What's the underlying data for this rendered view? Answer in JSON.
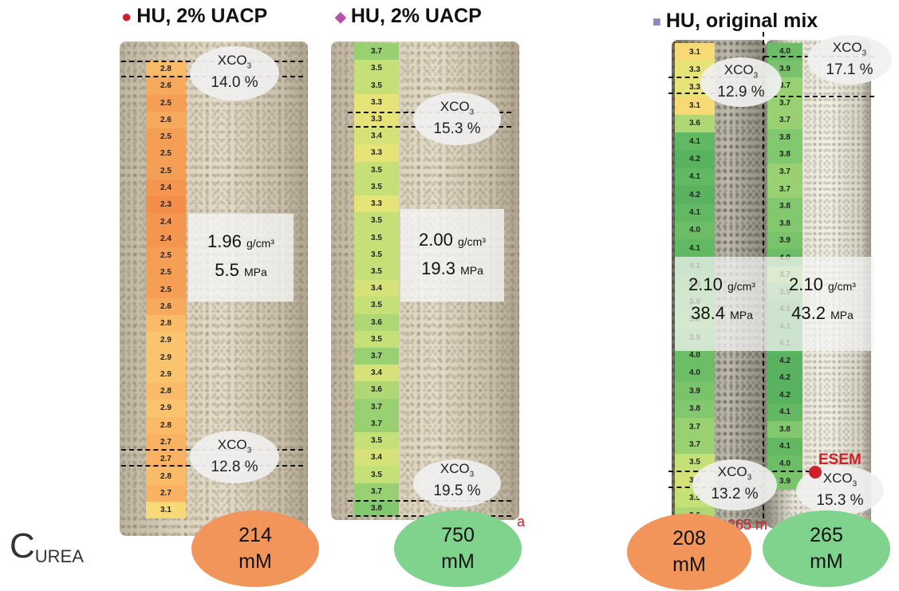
{
  "titles": {
    "left": {
      "marker": "●",
      "text": "HU, 2% UACP",
      "marker_color": "#d0202a"
    },
    "middle": {
      "marker": "◆",
      "text": "HU, 2% UACP",
      "marker_color": "#b455a8"
    },
    "right": {
      "marker": "■",
      "text": "HU, original mix",
      "marker_color": "#8f87c0"
    }
  },
  "samples": {
    "s1": {
      "strip": [
        "2.8",
        "2.6",
        "2.5",
        "2.6",
        "2.5",
        "2.5",
        "2.5",
        "2.4",
        "2.3",
        "2.4",
        "2.4",
        "2.5",
        "2.5",
        "2.5",
        "2.6",
        "2.8",
        "2.9",
        "2.9",
        "2.9",
        "2.8",
        "2.9",
        "2.8",
        "2.7",
        "2.7",
        "2.8",
        "2.7",
        "3.1"
      ],
      "top_xco3": {
        "label": "XCO3",
        "value": "14.0 %"
      },
      "bottom_xco3": {
        "label": "XCO3",
        "value": "12.8 %"
      },
      "density_value": "1.96",
      "density_unit": "g/cm³",
      "strength_value": "5.5",
      "strength_unit": "MPa",
      "urea": {
        "value": "214",
        "unit": "mM",
        "color": "#f2955a"
      }
    },
    "s2": {
      "strip": [
        "3.7",
        "3.5",
        "3.5",
        "3.3",
        "3.3",
        "3.4",
        "3.3",
        "3.5",
        "3.5",
        "3.3",
        "3.5",
        "3.5",
        "3.5",
        "3.5",
        "3.4",
        "3.5",
        "3.6",
        "3.5",
        "3.7",
        "3.4",
        "3.6",
        "3.7",
        "3.7",
        "3.5",
        "3.4",
        "3.5",
        "3.7",
        "3.8"
      ],
      "top_xco3": {
        "label": "XCO3",
        "value": "15.3 %"
      },
      "bottom_xco3": {
        "label": "XCO3",
        "value": "19.5 %"
      },
      "density_value": "2.00",
      "density_unit": "g/cm³",
      "strength_value": "19.3",
      "strength_unit": "MPa",
      "urea": {
        "value": "750",
        "unit": "mM",
        "color": "#7fd38c"
      }
    },
    "s3": {
      "strip": [
        "3.1",
        "3.3",
        "3.3",
        "3.1",
        "3.6",
        "4.1",
        "4.2",
        "4.1",
        "4.2",
        "4.1",
        "4.0",
        "4.1",
        "4.1",
        "4.0",
        "3.9",
        "3.8",
        "3.9",
        "4.0",
        "4.0",
        "3.9",
        "3.8",
        "3.7",
        "3.7",
        "3.5",
        "3.4",
        "3.5",
        "3.6"
      ],
      "top_xco3": {
        "label": "XCO3",
        "value": "12.9 %"
      },
      "bottom_xco3": {
        "label": "XCO3",
        "value": "13.2 %"
      },
      "density_value": "2.10",
      "density_unit": "g/cm³",
      "strength_value": "38.4",
      "strength_unit": "MPa",
      "urea": {
        "value": "208",
        "unit": "mM",
        "color": "#f2955a"
      }
    },
    "s4": {
      "strip": [
        "4.0",
        "3.9",
        "3.7",
        "3.7",
        "3.7",
        "3.8",
        "3.8",
        "3.7",
        "3.7",
        "3.8",
        "3.8",
        "3.9",
        "4.0",
        "3.7",
        "3.9",
        "4.1",
        "4.1",
        "4.1",
        "4.2",
        "4.2",
        "4.2",
        "4.1",
        "3.8",
        "4.1",
        "4.0",
        "3.9"
      ],
      "top_xco3": {
        "label": "XCO3",
        "value": "17.1 %"
      },
      "bottom_xco3": {
        "label": "XCO3",
        "value": "15.3 %"
      },
      "density_value": "2.10",
      "density_unit": "g/cm³",
      "strength_value": "43.2",
      "strength_unit": "MPa",
      "urea": {
        "value": "265",
        "unit": "mM",
        "color": "#7fd38c"
      }
    }
  },
  "esem_label": "ESEM",
  "partial_label": "265 m",
  "partial_label_mid": "a",
  "curea": {
    "main": "C",
    "sub": "UREA"
  }
}
